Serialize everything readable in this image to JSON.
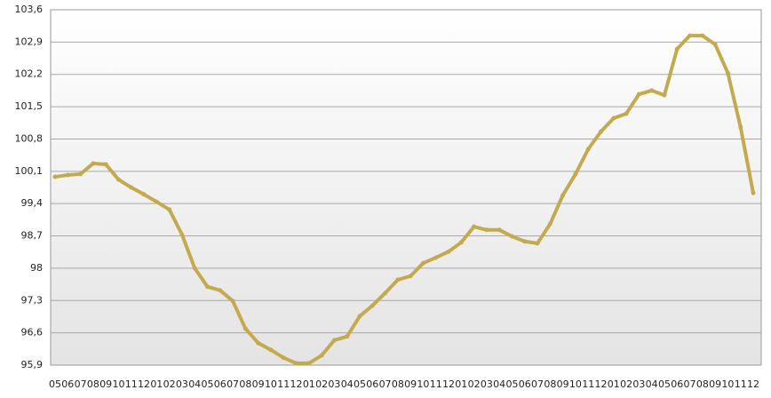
{
  "chart_data": {
    "type": "line",
    "categories": [
      "05",
      "06",
      "07",
      "08",
      "09",
      "10",
      "11",
      "12",
      "01",
      "02",
      "03",
      "04",
      "05",
      "06",
      "07",
      "08",
      "09",
      "10",
      "11",
      "12",
      "01",
      "02",
      "03",
      "04",
      "05",
      "06",
      "07",
      "08",
      "09",
      "10",
      "11",
      "12",
      "01",
      "02",
      "03",
      "04",
      "05",
      "06",
      "07",
      "08",
      "09",
      "10",
      "11",
      "12",
      "01",
      "02",
      "03",
      "04",
      "05",
      "06",
      "07",
      "08",
      "09",
      "10",
      "11",
      "12"
    ],
    "series": [
      {
        "color": "#c4aa4f",
        "values": [
          99.98,
          100.02,
          100.04,
          100.27,
          100.25,
          99.92,
          99.75,
          99.6,
          99.44,
          99.27,
          98.73,
          98.0,
          97.6,
          97.52,
          97.29,
          96.69,
          96.38,
          96.23,
          96.06,
          95.94,
          95.94,
          96.11,
          96.44,
          96.52,
          96.96,
          97.19,
          97.46,
          97.75,
          97.83,
          98.11,
          98.23,
          98.36,
          98.56,
          98.9,
          98.83,
          98.83,
          98.69,
          98.58,
          98.54,
          98.96,
          99.58,
          100.04,
          100.58,
          100.96,
          101.25,
          101.35,
          101.77,
          101.85,
          101.75,
          102.75,
          103.04,
          103.04,
          102.85,
          102.23,
          101.06,
          99.63
        ]
      }
    ],
    "ylim": [
      95.9,
      103.6
    ],
    "yticks": [
      {
        "value": 95.9,
        "label": "95,9"
      },
      {
        "value": 96.6,
        "label": "96,6"
      },
      {
        "value": 97.3,
        "label": "97,3"
      },
      98,
      {
        "value": 98.7,
        "label": "98,7"
      },
      {
        "value": 99.4,
        "label": "99,4"
      },
      {
        "value": 100.1,
        "label": "100,1"
      },
      {
        "value": 100.8,
        "label": "100,8"
      },
      {
        "value": 101.5,
        "label": "101,5"
      },
      {
        "value": 102.2,
        "label": "102,2"
      },
      {
        "value": 102.9,
        "label": "102,9"
      },
      {
        "value": 103.6,
        "label": "103,6"
      }
    ],
    "grid": true
  }
}
